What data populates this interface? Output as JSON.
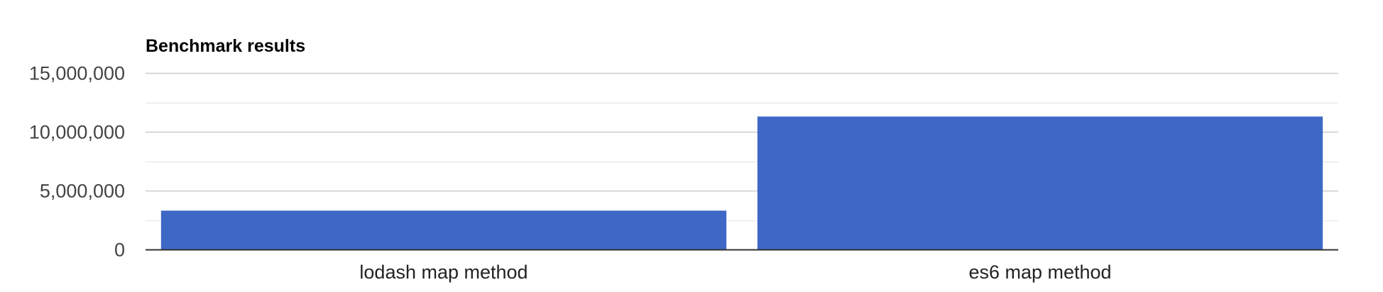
{
  "chart_data": {
    "type": "bar",
    "title": "Benchmark results",
    "categories": [
      "lodash map method",
      "es6 map method"
    ],
    "series": [
      {
        "values": [
          3300000,
          11300000
        ]
      }
    ],
    "ylim": [
      0,
      15000000
    ],
    "yticks": [
      "0",
      "5,000,000",
      "10,000,000",
      "15,000,000"
    ],
    "ytick_values": [
      0,
      5000000,
      10000000,
      15000000
    ],
    "minor_gridlines": [
      2500000,
      7500000,
      12500000
    ],
    "xlabel": "",
    "ylabel": "",
    "grid": true,
    "legend": "none",
    "bar_color": "#3e68c6",
    "gridline_color": "#cccccc",
    "minor_gridline_color": "#ebebeb",
    "baseline_color": "#333333"
  }
}
